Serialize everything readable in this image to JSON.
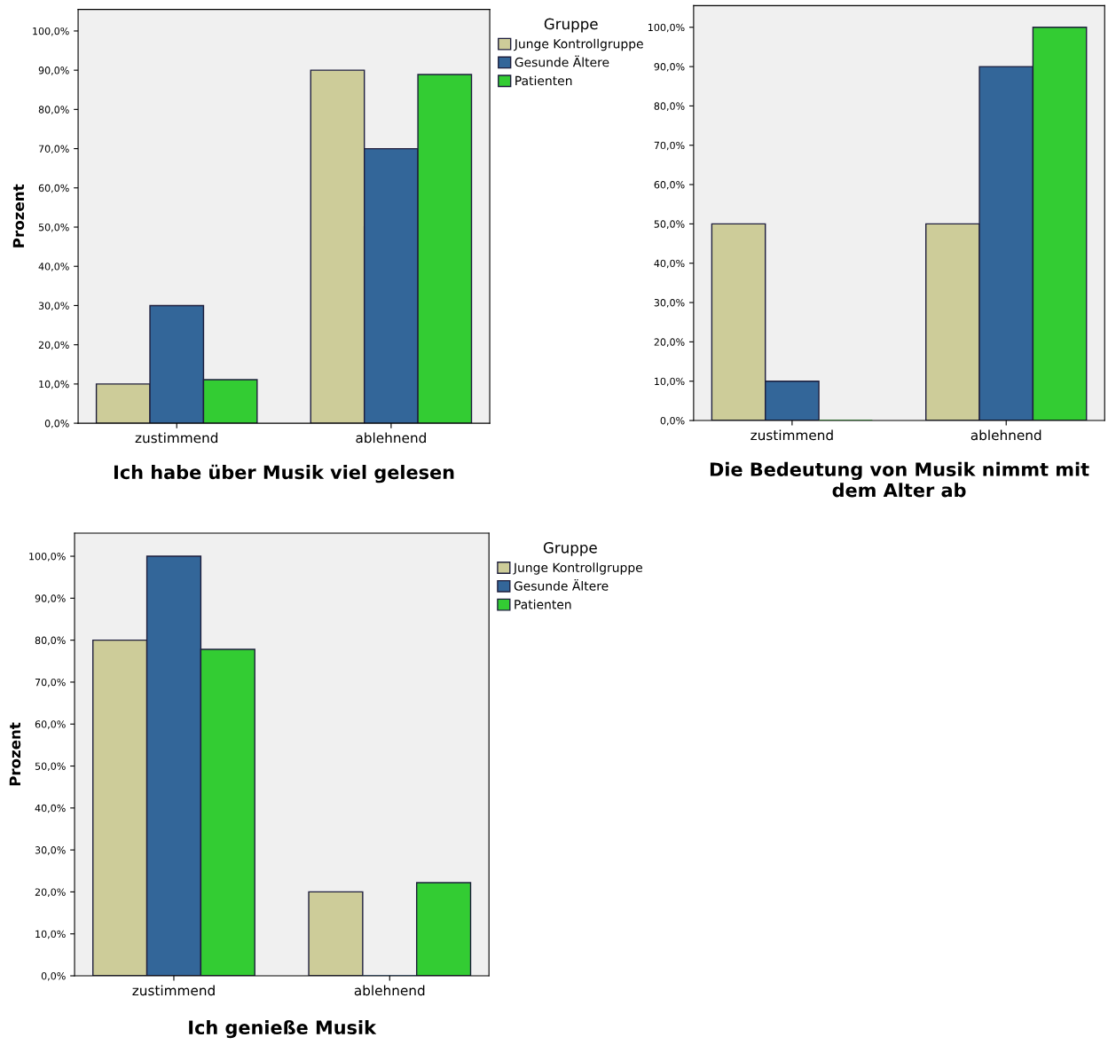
{
  "chart_data": [
    {
      "type": "bar",
      "title": "Ich habe über Musik viel gelesen",
      "ylabel": "Prozent",
      "legend_title": "Gruppe",
      "legend": "right",
      "grid": false,
      "categories": [
        "zustimmend",
        "ablehnend"
      ],
      "series": [
        {
          "name": "Junge Kontrollgruppe",
          "color": "#cdcc99",
          "values": [
            10,
            90
          ]
        },
        {
          "name": "Gesunde Ältere",
          "color": "#336699",
          "values": [
            30,
            70
          ]
        },
        {
          "name": "Patienten",
          "color": "#33cc33",
          "values": [
            11.1,
            88.9
          ]
        }
      ],
      "ylim": [
        0,
        105.5
      ],
      "yticks": [
        {
          "value": 0,
          "label": "0,0%"
        },
        {
          "value": 10,
          "label": "10,0%"
        },
        {
          "value": 20,
          "label": "20,0%"
        },
        {
          "value": 30,
          "label": "30,0%"
        },
        {
          "value": 40,
          "label": "40,0%"
        },
        {
          "value": 50,
          "label": "50,0%"
        },
        {
          "value": 60,
          "label": "60,0%"
        },
        {
          "value": 70,
          "label": "70,0%"
        },
        {
          "value": 80,
          "label": "80,0%"
        },
        {
          "value": 90,
          "label": "90,0%"
        },
        {
          "value": 100,
          "label": "100,0%"
        }
      ]
    },
    {
      "type": "bar",
      "title": "Die Bedeutung von Musik nimmt mit dem Alter ab",
      "legend": false,
      "grid": false,
      "categories": [
        "zustimmend",
        "ablehnend"
      ],
      "series": [
        {
          "color": "#cdcc99",
          "values": [
            50,
            50
          ]
        },
        {
          "color": "#336699",
          "values": [
            10,
            90
          ]
        },
        {
          "color": "#33cc33",
          "values": [
            0,
            100
          ]
        }
      ],
      "ylim": [
        0,
        105.5
      ],
      "yticks": [
        {
          "value": 0,
          "label": "0,0%"
        },
        {
          "value": 10,
          "label": "10,0%"
        },
        {
          "value": 20,
          "label": "20,0%"
        },
        {
          "value": 30,
          "label": "30,0%"
        },
        {
          "value": 40,
          "label": "40,0%"
        },
        {
          "value": 50,
          "label": "50,0%"
        },
        {
          "value": 60,
          "label": "60,0%"
        },
        {
          "value": 70,
          "label": "70,0%"
        },
        {
          "value": 80,
          "label": "80,0%"
        },
        {
          "value": 90,
          "label": "90,0%"
        },
        {
          "value": 100,
          "label": "100,0%"
        }
      ]
    },
    {
      "type": "bar",
      "title": "Ich genieße Musik",
      "ylabel": "Prozent",
      "legend_title": "Gruppe",
      "legend": "right",
      "grid": false,
      "categories": [
        "zustimmend",
        "ablehnend"
      ],
      "series": [
        {
          "name": "Junge Kontrollgruppe",
          "color": "#cdcc99",
          "values": [
            80,
            20
          ]
        },
        {
          "name": "Gesunde Ältere",
          "color": "#336699",
          "values": [
            100,
            0
          ]
        },
        {
          "name": "Patienten",
          "color": "#33cc33",
          "values": [
            77.8,
            22.2
          ]
        }
      ],
      "ylim": [
        0,
        105.5
      ],
      "yticks": [
        {
          "value": 0,
          "label": "0,0%"
        },
        {
          "value": 10,
          "label": "10,0%"
        },
        {
          "value": 20,
          "label": "20,0%"
        },
        {
          "value": 30,
          "label": "30,0%"
        },
        {
          "value": 40,
          "label": "40,0%"
        },
        {
          "value": 50,
          "label": "50,0%"
        },
        {
          "value": 60,
          "label": "60,0%"
        },
        {
          "value": 70,
          "label": "70,0%"
        },
        {
          "value": 80,
          "label": "80,0%"
        },
        {
          "value": 90,
          "label": "90,0%"
        },
        {
          "value": 100,
          "label": "100,0%"
        }
      ]
    }
  ]
}
